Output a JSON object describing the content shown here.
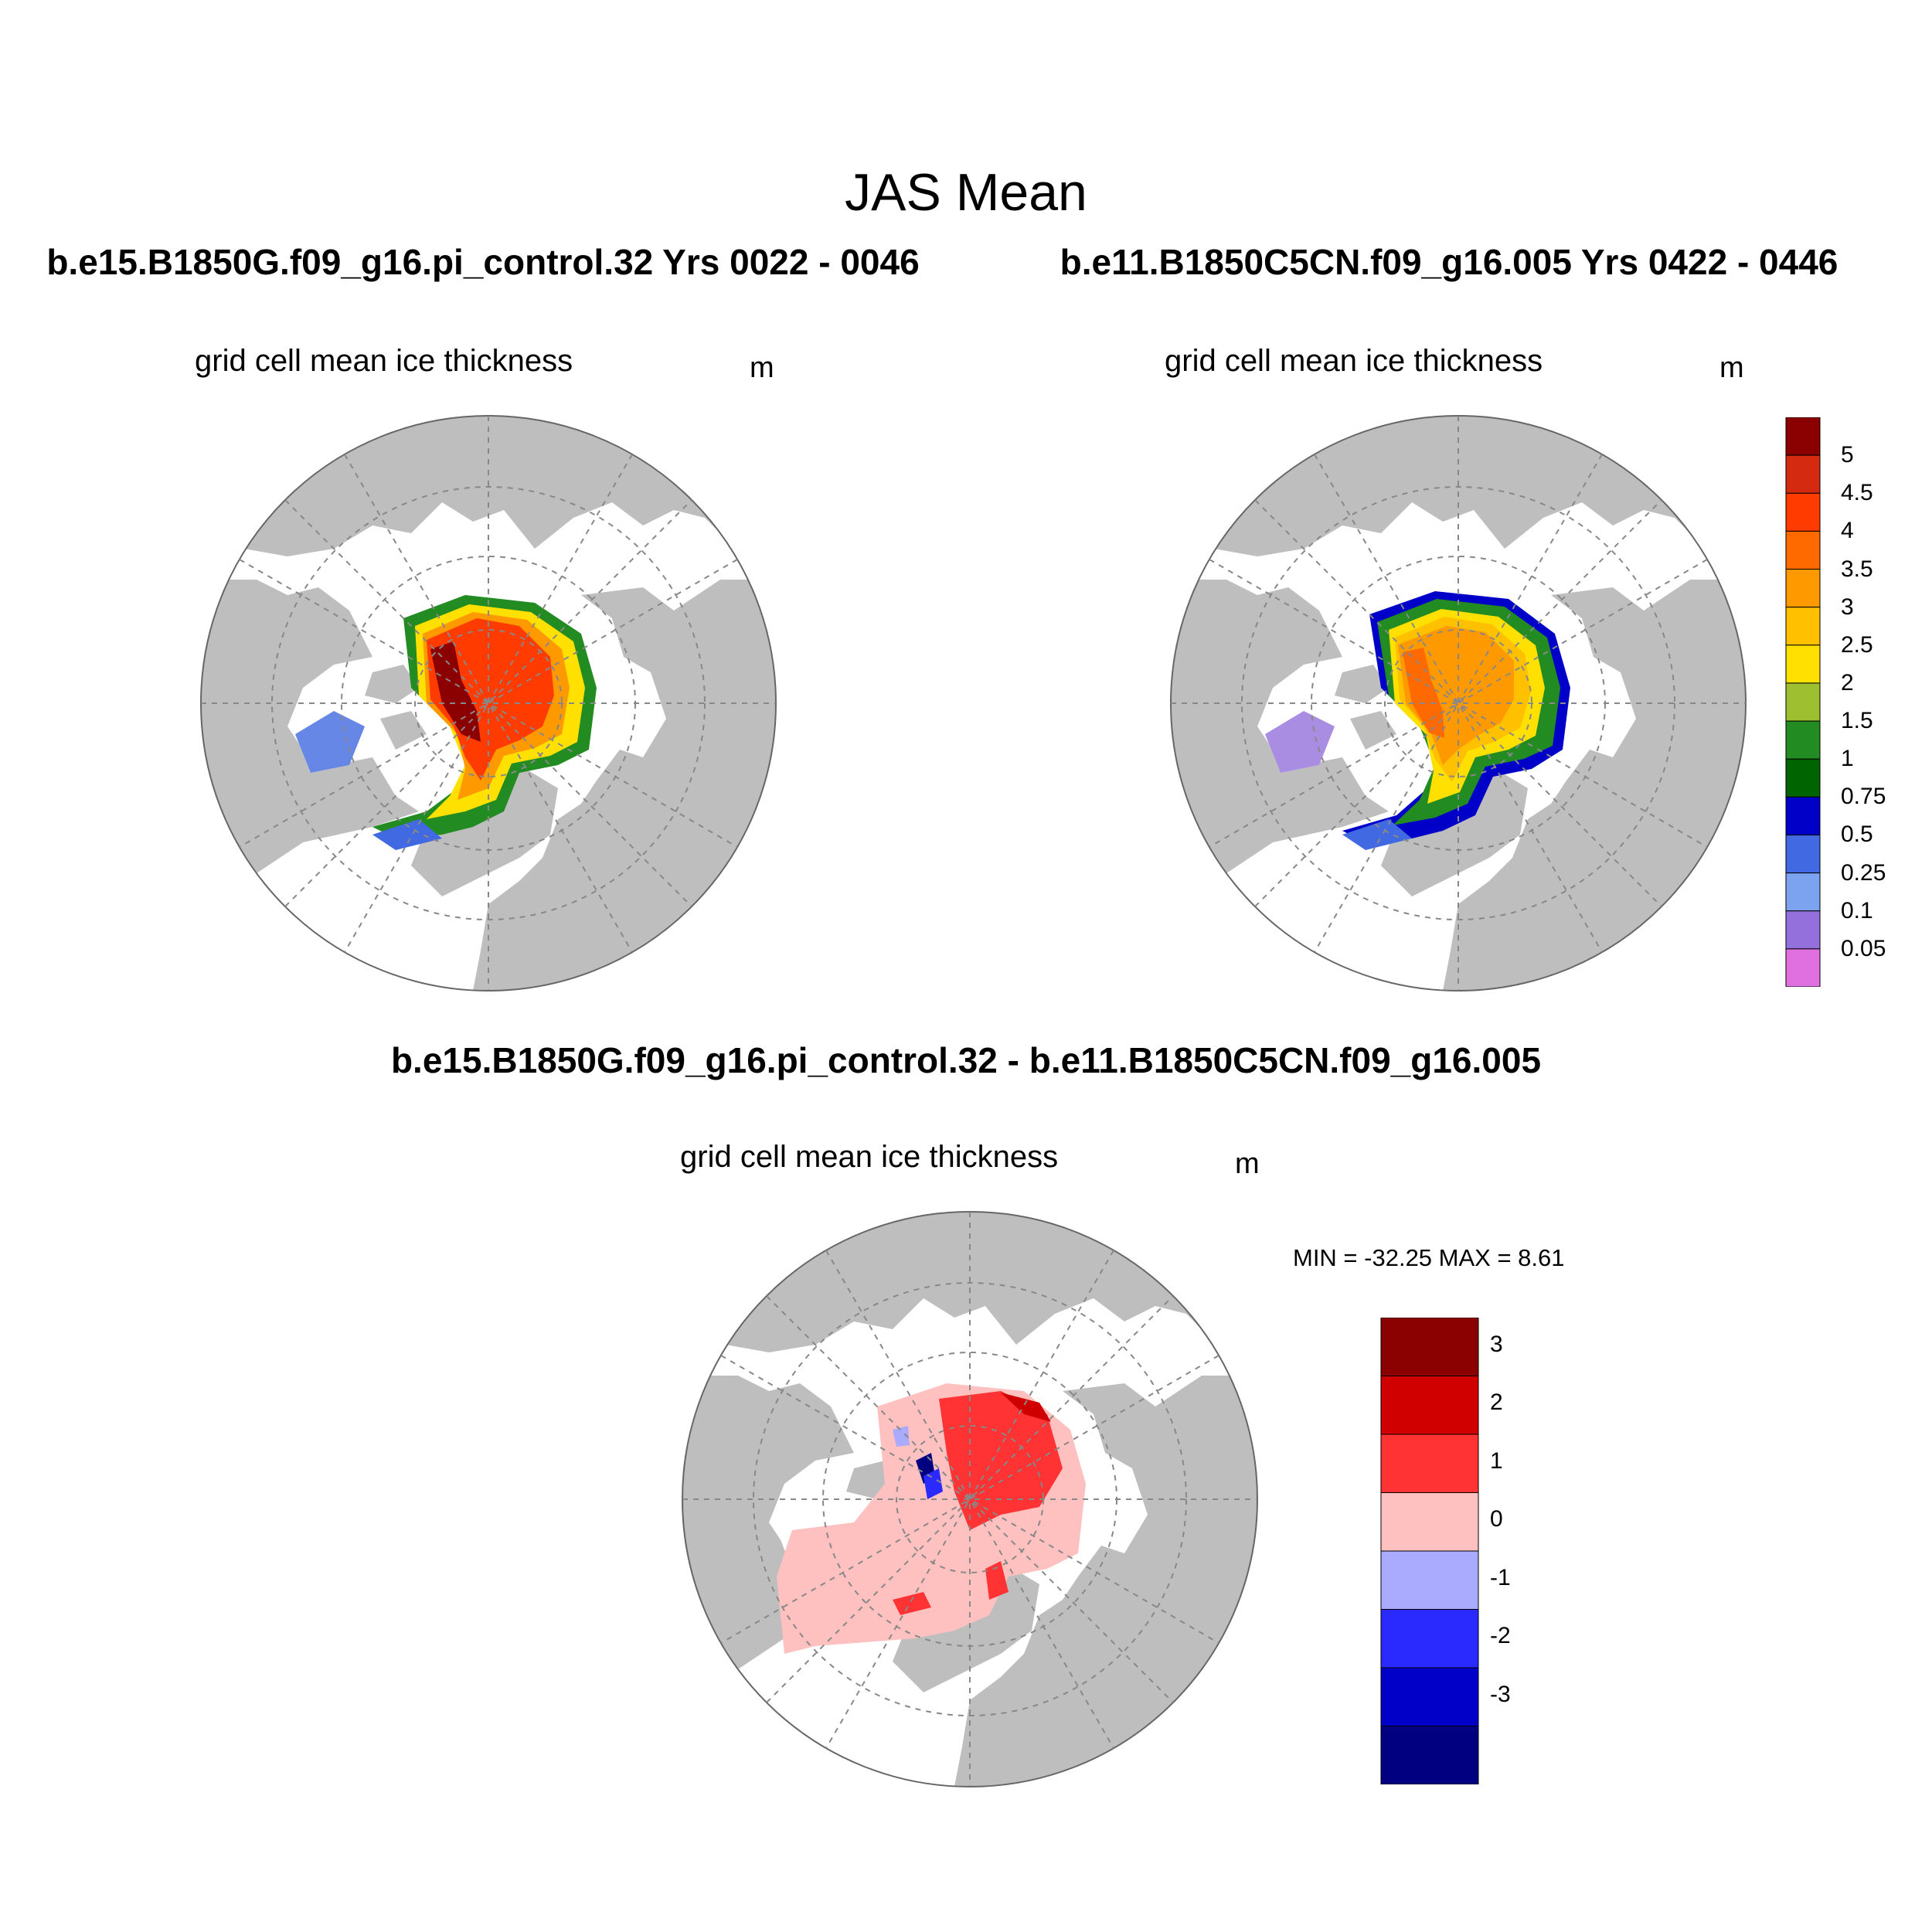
{
  "header": {
    "title": "JAS Mean",
    "left_case": "b.e15.B1850G.f09_g16.pi_control.32  Yrs 0022 - 0046",
    "right_case": "b.e11.B1850C5CN.f09_g16.005  Yrs 0422 - 0446",
    "diff_title": "b.e15.B1850G.f09_g16.pi_control.32 - b.e11.B1850C5CN.f09_g16.005"
  },
  "panels": {
    "left": {
      "variable": "grid cell mean ice thickness",
      "unit": "m"
    },
    "right": {
      "variable": "grid cell mean ice thickness",
      "unit": "m"
    },
    "diff": {
      "variable": "grid cell mean ice thickness",
      "unit": "m",
      "min_max": "MIN = -32.25 MAX =   8.61"
    }
  },
  "legend_abs": {
    "labels": [
      "5",
      "4.5",
      "4",
      "3.5",
      "3",
      "2.5",
      "2",
      "1.5",
      "1",
      "0.75",
      "0.5",
      "0.25",
      "0.1",
      "0.05"
    ],
    "colors": [
      "#8b0000",
      "#d42b10",
      "#ff3b00",
      "#ff6a00",
      "#ff9900",
      "#ffc000",
      "#ffe000",
      "#9ec030",
      "#228b22",
      "#006400",
      "#0000c8",
      "#4169e1",
      "#7ba3f0",
      "#9370db",
      "#e070e0"
    ]
  },
  "legend_diff": {
    "labels": [
      "3",
      "2",
      "1",
      "0",
      "-1",
      "-2",
      "-3"
    ],
    "colors": [
      "#8b0000",
      "#d00000",
      "#ff3333",
      "#ffc0c0",
      "#aaaaff",
      "#2a2aff",
      "#0000c8",
      "#000080"
    ]
  },
  "map_style": {
    "land": "#bebebe",
    "ocean": "#ffffff",
    "grid": "#888888"
  }
}
